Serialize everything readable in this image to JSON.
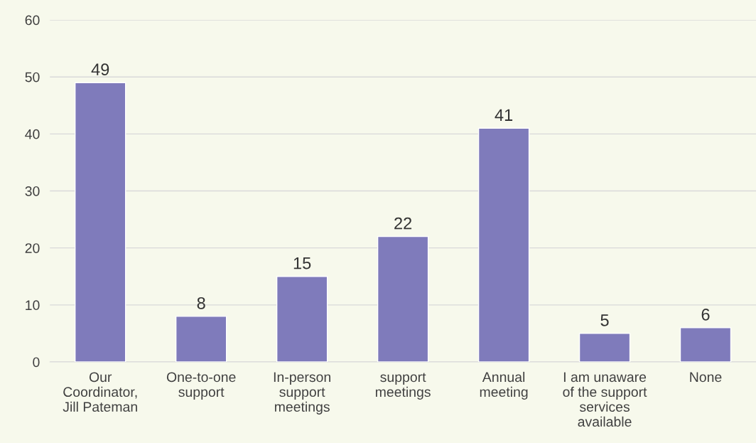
{
  "chart_data": {
    "type": "bar",
    "categories": [
      "Our\nCoordinator,\nJill Pateman",
      "One-to-one\nsupport",
      "In-person\nsupport\nmeetings",
      "support\nmeetings",
      "Annual\nmeeting",
      "I am unaware\nof the support\nservices\navailable",
      "None"
    ],
    "values": [
      49,
      8,
      15,
      22,
      41,
      5,
      6
    ],
    "color": "#7f7bbb",
    "ylim": [
      0,
      60
    ],
    "yticks": [
      0,
      10,
      20,
      30,
      40,
      50,
      60
    ],
    "grid": "y",
    "data_labels": true
  }
}
